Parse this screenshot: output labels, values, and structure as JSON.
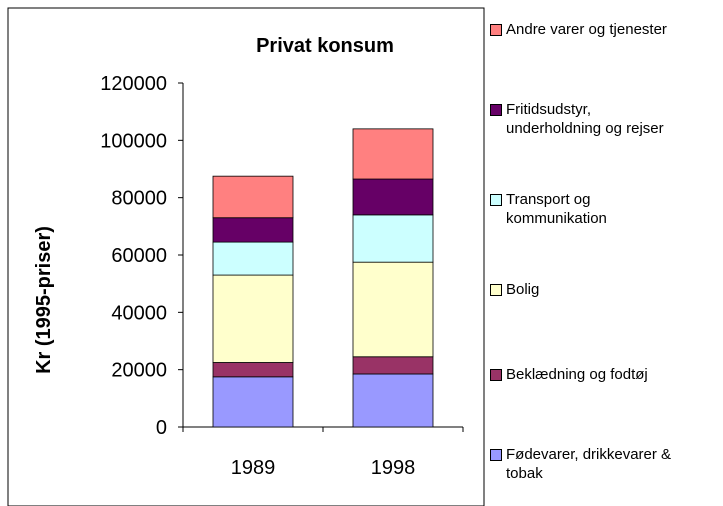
{
  "chart_data": {
    "type": "bar",
    "stacked": true,
    "title": "Privat konsum",
    "y_label": "Kr (1995-priser)",
    "categories": [
      "1989",
      "1998"
    ],
    "series": [
      {
        "name": "Fødevarer, drikkevarer & tobak",
        "color": "#9999ff",
        "values": [
          17500,
          18500
        ]
      },
      {
        "name": "Beklædning og fodtøj",
        "color": "#993366",
        "values": [
          5000,
          6000
        ]
      },
      {
        "name": "Bolig",
        "color": "#ffffcc",
        "values": [
          30500,
          33000
        ]
      },
      {
        "name": "Transport og kommunikation",
        "color": "#ccffff",
        "values": [
          11500,
          16500
        ]
      },
      {
        "name": "Fritidsudstyr, underholdning og rejser",
        "color": "#660066",
        "values": [
          8500,
          12500
        ]
      },
      {
        "name": "Andre varer og tjenester",
        "color": "#ff8080",
        "values": [
          14500,
          17500
        ]
      }
    ],
    "ylim": [
      0,
      120000
    ],
    "yticks": [
      0,
      20000,
      40000,
      60000,
      80000,
      100000,
      120000
    ]
  }
}
